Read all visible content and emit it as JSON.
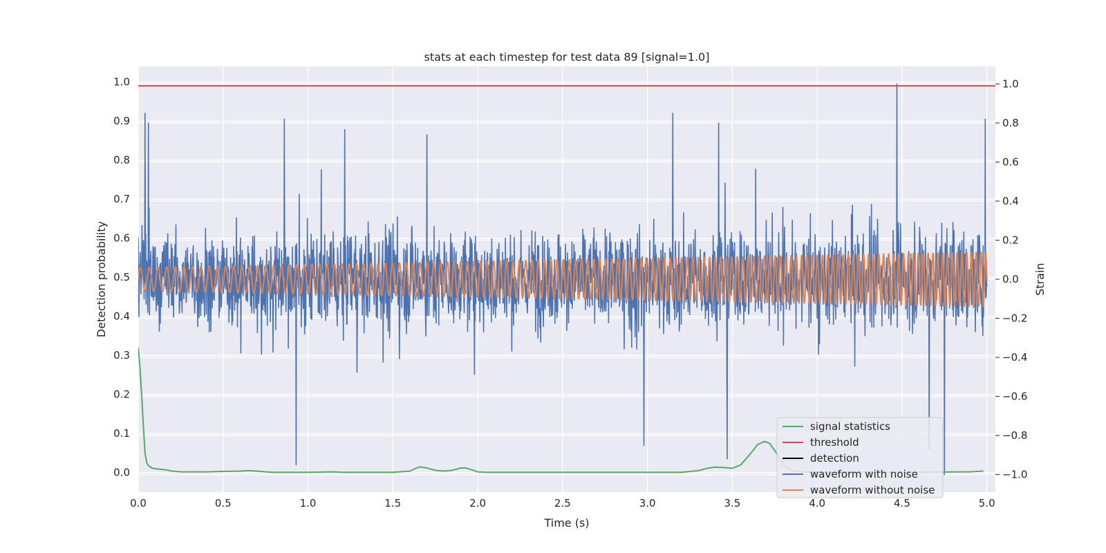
{
  "chart_data": {
    "type": "line",
    "title": "stats at each timestep for test data 89 [signal=1.0]",
    "xlabel": "Time (s)",
    "ylabel": "Detection probability",
    "y2label": "Strain",
    "xlim": [
      0.0,
      5.05
    ],
    "ylim": [
      -0.05,
      1.04
    ],
    "y2lim": [
      -1.09,
      1.09
    ],
    "grid": true,
    "legend_position": "lower-right",
    "x_ticks": [
      {
        "value": 0.0,
        "label": "0.0"
      },
      {
        "value": 0.5,
        "label": "0.5"
      },
      {
        "value": 1.0,
        "label": "1.0"
      },
      {
        "value": 1.5,
        "label": "1.5"
      },
      {
        "value": 2.0,
        "label": "2.0"
      },
      {
        "value": 2.5,
        "label": "2.5"
      },
      {
        "value": 3.0,
        "label": "3.0"
      },
      {
        "value": 3.5,
        "label": "3.5"
      },
      {
        "value": 4.0,
        "label": "4.0"
      },
      {
        "value": 4.5,
        "label": "4.5"
      },
      {
        "value": 5.0,
        "label": "5.0"
      }
    ],
    "y_ticks": [
      {
        "value": 0.0,
        "label": "0.0"
      },
      {
        "value": 0.1,
        "label": "0.1"
      },
      {
        "value": 0.2,
        "label": "0.2"
      },
      {
        "value": 0.3,
        "label": "0.3"
      },
      {
        "value": 0.4,
        "label": "0.4"
      },
      {
        "value": 0.5,
        "label": "0.5"
      },
      {
        "value": 0.6,
        "label": "0.6"
      },
      {
        "value": 0.7,
        "label": "0.7"
      },
      {
        "value": 0.8,
        "label": "0.8"
      },
      {
        "value": 0.9,
        "label": "0.9"
      },
      {
        "value": 1.0,
        "label": "1.0"
      }
    ],
    "y2_ticks": [
      {
        "value": 1.0,
        "label": "1.0"
      },
      {
        "value": 0.8,
        "label": "0.8"
      },
      {
        "value": 0.6,
        "label": "0.6"
      },
      {
        "value": 0.4,
        "label": "0.4"
      },
      {
        "value": 0.2,
        "label": "0.2"
      },
      {
        "value": 0.0,
        "label": "0.0"
      },
      {
        "value": -0.2,
        "label": "−0.2"
      },
      {
        "value": -0.4,
        "label": "−0.4"
      },
      {
        "value": -0.6,
        "label": "−0.6"
      },
      {
        "value": -0.8,
        "label": "−0.8"
      },
      {
        "value": -1.0,
        "label": "−1.0"
      }
    ],
    "series": [
      {
        "name": "signal statistics",
        "axis": "left",
        "color": "#55a868",
        "x": [
          0.0,
          0.01,
          0.02,
          0.03,
          0.04,
          0.05,
          0.06,
          0.08,
          0.1,
          0.15,
          0.2,
          0.25,
          0.3,
          0.4,
          0.5,
          0.6,
          0.65,
          0.7,
          0.75,
          0.8,
          1.0,
          1.15,
          1.2,
          1.5,
          1.6,
          1.63,
          1.66,
          1.7,
          1.75,
          1.8,
          1.85,
          1.9,
          1.93,
          1.96,
          2.0,
          2.05,
          2.5,
          3.0,
          3.2,
          3.3,
          3.35,
          3.4,
          3.45,
          3.5,
          3.55,
          3.6,
          3.65,
          3.69,
          3.72,
          3.76,
          3.8,
          3.85,
          3.9,
          4.0,
          4.5,
          4.9,
          4.98
        ],
        "y": [
          0.32,
          0.27,
          0.2,
          0.12,
          0.05,
          0.025,
          0.018,
          0.012,
          0.01,
          0.008,
          0.004,
          0.002,
          0.002,
          0.002,
          0.003,
          0.004,
          0.005,
          0.004,
          0.002,
          0.001,
          0.001,
          0.002,
          0.001,
          0.001,
          0.004,
          0.01,
          0.015,
          0.012,
          0.006,
          0.004,
          0.006,
          0.012,
          0.012,
          0.008,
          0.002,
          0.001,
          0.001,
          0.001,
          0.001,
          0.005,
          0.011,
          0.014,
          0.013,
          0.011,
          0.02,
          0.045,
          0.072,
          0.08,
          0.075,
          0.05,
          0.02,
          0.006,
          0.002,
          0.001,
          0.001,
          0.002,
          0.004
        ]
      },
      {
        "name": "threshold",
        "axis": "left",
        "color": "#c44e52",
        "x": [
          0.0,
          5.05
        ],
        "y": [
          0.99,
          0.99
        ]
      },
      {
        "name": "detection",
        "axis": "left",
        "color": "#000000",
        "x": [],
        "y": []
      },
      {
        "name": "waveform with noise",
        "axis": "right",
        "color": "#4c72b0",
        "generated": "noise",
        "x_start": 0.0,
        "x_end": 5.0,
        "points": 2500,
        "typical_amplitude": 0.2,
        "spikes": [
          {
            "x": 0.04,
            "y": 0.85
          },
          {
            "x": 0.06,
            "y": 0.8
          },
          {
            "x": 0.86,
            "y": 0.82
          },
          {
            "x": 0.93,
            "y": -0.95
          },
          {
            "x": 1.7,
            "y": 0.74
          },
          {
            "x": 3.15,
            "y": 0.85
          },
          {
            "x": 3.42,
            "y": 0.8
          },
          {
            "x": 3.47,
            "y": -0.92
          },
          {
            "x": 2.98,
            "y": -0.85
          },
          {
            "x": 4.47,
            "y": 1.0
          },
          {
            "x": 4.75,
            "y": -1.0
          },
          {
            "x": 4.66,
            "y": -0.87
          },
          {
            "x": 4.99,
            "y": 0.82
          }
        ]
      },
      {
        "name": "waveform without noise",
        "axis": "right",
        "color": "#dd8452",
        "generated": "chirp",
        "x_start": 0.0,
        "x_end": 5.0,
        "amplitude_start": 0.06,
        "amplitude_end": 0.14,
        "frequency_start_hz": 19,
        "frequency_end_hz": 36
      }
    ]
  }
}
